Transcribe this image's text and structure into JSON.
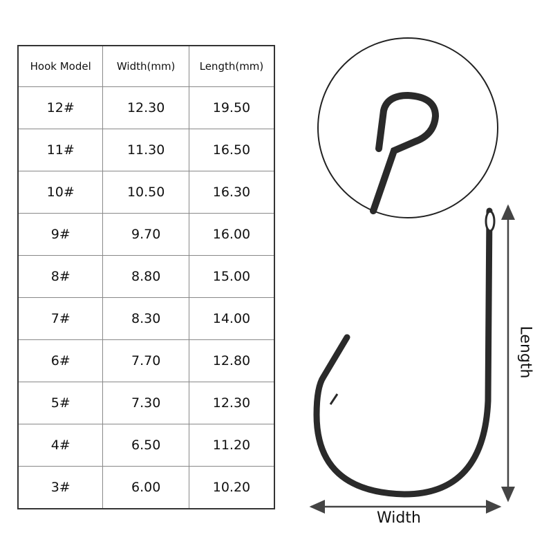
{
  "table": {
    "headers": [
      "Hook Model",
      "Width(mm)",
      "Length(mm)"
    ],
    "rows": [
      [
        "12#",
        "12.30",
        "19.50"
      ],
      [
        "11#",
        "11.30",
        "16.50"
      ],
      [
        "10#",
        "10.50",
        "16.30"
      ],
      [
        "9#",
        "9.70",
        "16.00"
      ],
      [
        "8#",
        "8.80",
        "15.00"
      ],
      [
        "7#",
        "8.30",
        "14.00"
      ],
      [
        "6#",
        "7.70",
        "12.80"
      ],
      [
        "5#",
        "7.30",
        "12.30"
      ],
      [
        "4#",
        "6.50",
        "11.20"
      ],
      [
        "3#",
        "6.00",
        "10.20"
      ]
    ]
  },
  "diagram": {
    "length_label": "Length",
    "width_label": "Width",
    "hook_color": "#2a2a2a"
  }
}
